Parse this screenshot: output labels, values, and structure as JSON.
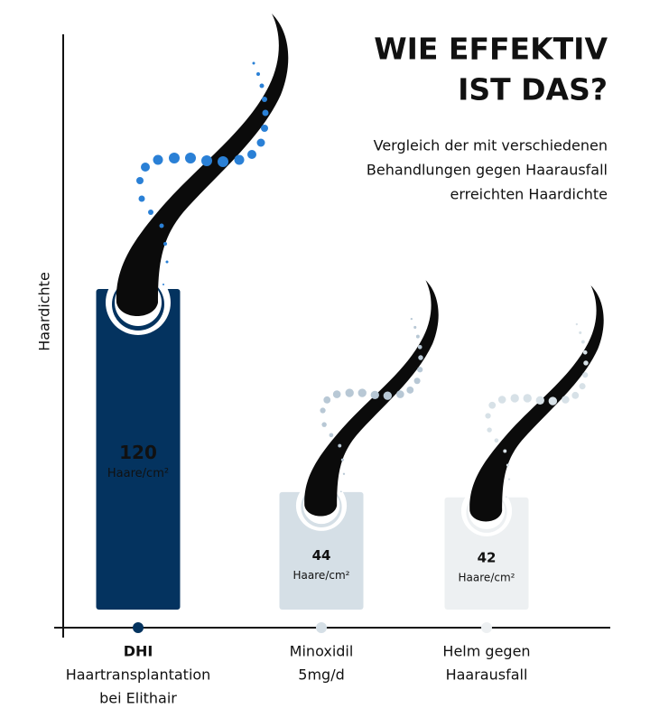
{
  "chart_data": {
    "type": "bar",
    "title": [
      "WIE EFFEKTIV",
      "IST DAS?"
    ],
    "subtitle": [
      "Vergleich der mit verschiedenen",
      "Behandlungen gegen Haarausfall",
      "erreichten Haardichte"
    ],
    "y_label": "Haardichte",
    "categories": [
      [
        "DHI",
        "Haartransplantation",
        "bei Elithair"
      ],
      [
        "Minoxidil",
        "5mg/d"
      ],
      [
        "Helm gegen",
        "Haarausfall"
      ]
    ],
    "values": [
      120,
      44,
      42
    ],
    "value_unit": "Haare/cm²",
    "colors": [
      "#04335f",
      "#d5dfe6",
      "#edf0f2"
    ],
    "dot_colors": [
      "#2a80d6",
      "#b8c8d5",
      "#d7e1e7"
    ],
    "value_label_colors": [
      "#ffffff",
      "#1c2530",
      "#1c2530"
    ]
  }
}
